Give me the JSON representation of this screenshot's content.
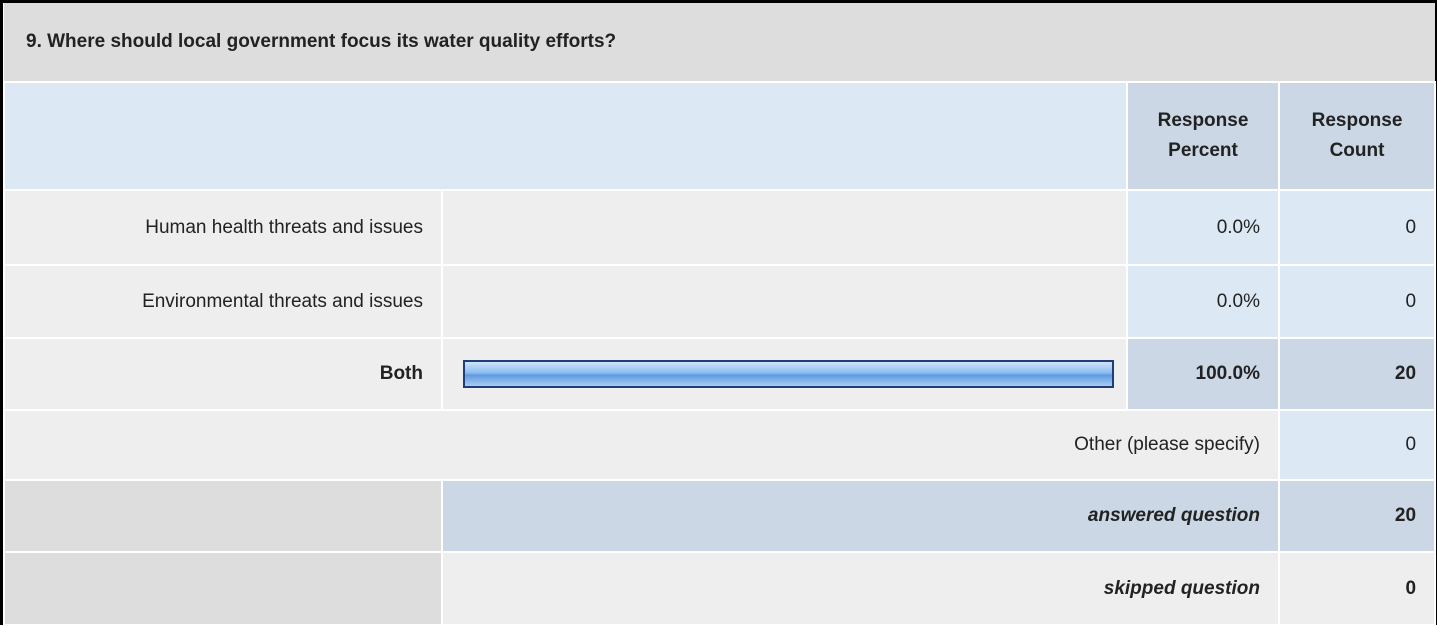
{
  "title": "9. Where should local government focus its water quality efforts?",
  "header": {
    "percent": "Response Percent",
    "count": "Response Count"
  },
  "rows": [
    {
      "label": "Human health threats and issues",
      "percent": 0,
      "percent_label": "0.0%",
      "count": 0
    },
    {
      "label": "Environmental threats and issues",
      "percent": 0,
      "percent_label": "0.0%",
      "count": 0
    },
    {
      "label": "Both",
      "percent": 100,
      "percent_label": "100.0%",
      "count": 20
    }
  ],
  "other": {
    "label": "Other (please specify)",
    "count": 0
  },
  "answered": {
    "label": "answered question",
    "count": 20
  },
  "skipped": {
    "label": "skipped question",
    "count": 0
  }
}
